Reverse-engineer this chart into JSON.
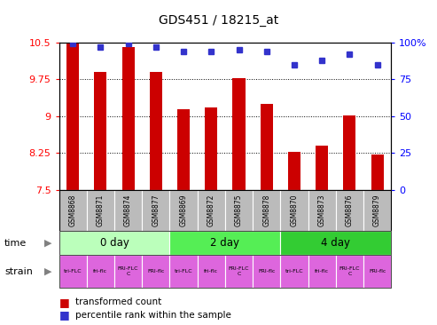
{
  "title": "GDS451 / 18215_at",
  "samples": [
    "GSM8868",
    "GSM8871",
    "GSM8874",
    "GSM8877",
    "GSM8869",
    "GSM8872",
    "GSM8875",
    "GSM8878",
    "GSM8870",
    "GSM8873",
    "GSM8876",
    "GSM8879"
  ],
  "bar_values": [
    10.5,
    9.9,
    10.4,
    9.9,
    9.15,
    9.18,
    9.78,
    9.25,
    8.28,
    8.4,
    9.02,
    8.22
  ],
  "dot_values": [
    99,
    97,
    99,
    97,
    94,
    94,
    95,
    94,
    85,
    88,
    92,
    85
  ],
  "ylim_left": [
    7.5,
    10.5
  ],
  "ylim_right": [
    0,
    100
  ],
  "yticks_left": [
    7.5,
    8.25,
    9.0,
    9.75,
    10.5
  ],
  "yticks_right": [
    0,
    25,
    50,
    75,
    100
  ],
  "bar_color": "#cc0000",
  "dot_color": "#3333cc",
  "time_groups": [
    {
      "label": "0 day",
      "start": 0,
      "end": 4,
      "color": "#bbffbb"
    },
    {
      "label": "2 day",
      "start": 4,
      "end": 8,
      "color": "#55ee55"
    },
    {
      "label": "4 day",
      "start": 8,
      "end": 12,
      "color": "#33cc33"
    }
  ],
  "strain_labels": [
    "tri-FLC",
    "fri-flc",
    "FRI-FLC\nC",
    "FRI-flc",
    "tri-FLC",
    "fri-flc",
    "FRI-FLC\nC",
    "FRI-flc",
    "tri-FLC",
    "fri-flc",
    "FRI-FLC\nC",
    "FRI-flc"
  ],
  "strain_pink": "#dd66dd",
  "strain_white": "#ffffff",
  "sample_bg_color": "#bbbbbb",
  "legend_red_label": "transformed count",
  "legend_blue_label": "percentile rank within the sample",
  "time_label": "time",
  "strain_label": "strain",
  "baseline": 7.5,
  "bar_width": 0.45
}
